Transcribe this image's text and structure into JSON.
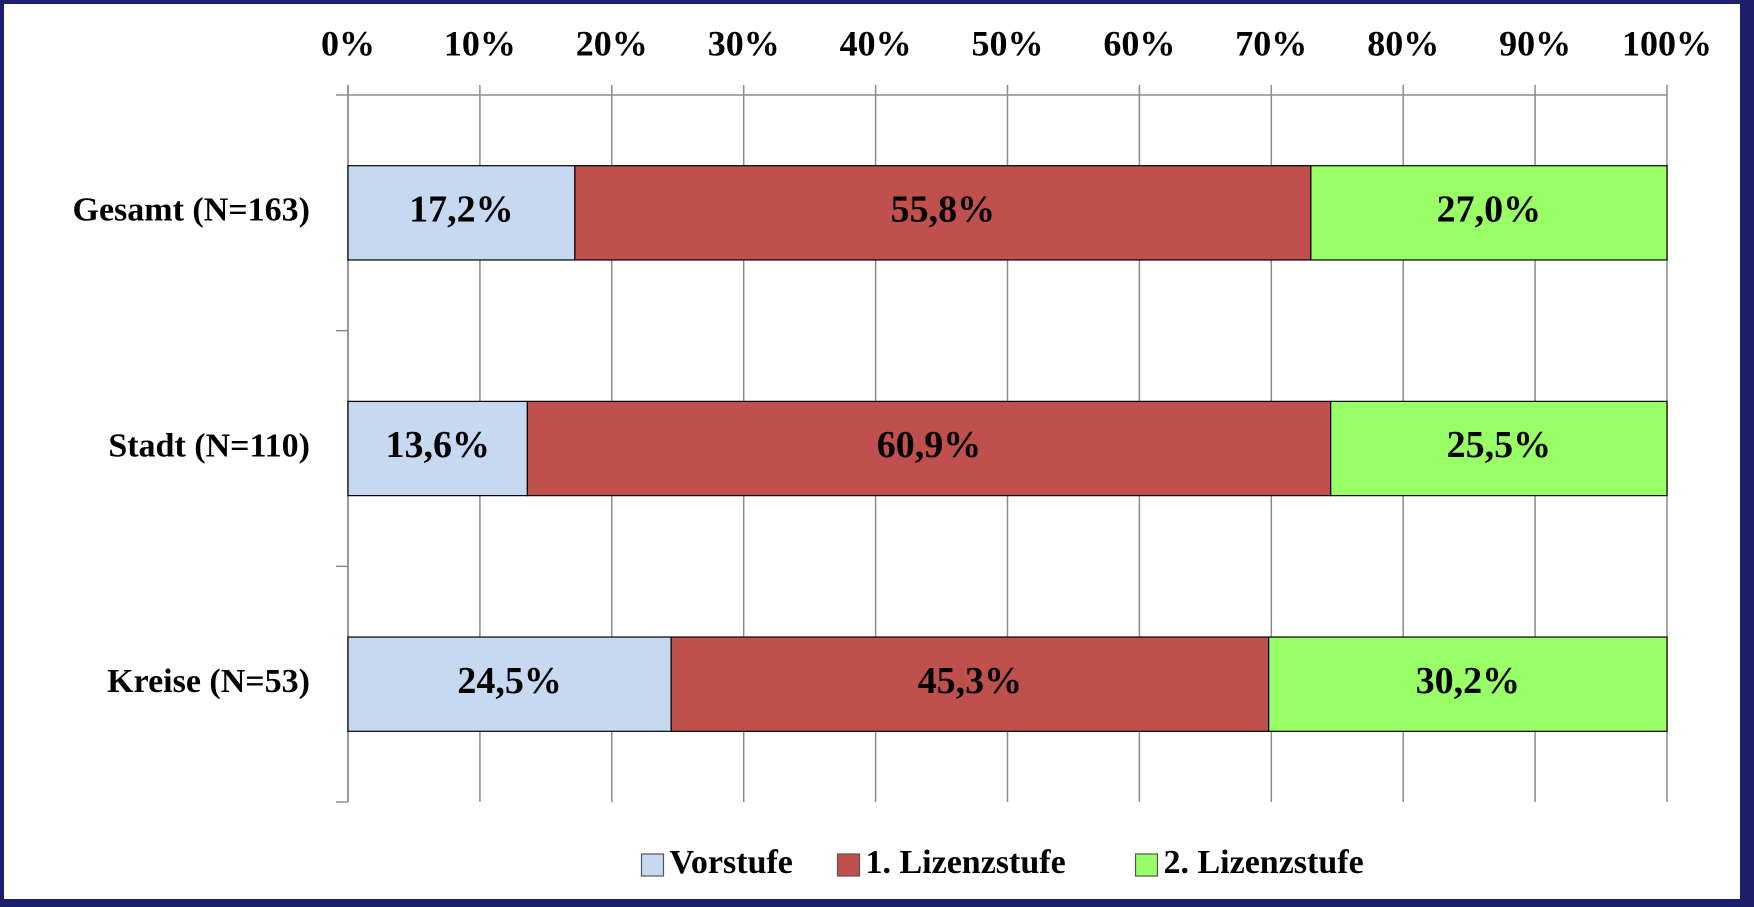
{
  "chart_data": {
    "type": "stacked_barh",
    "categories": [
      "Gesamt (N=163)",
      "Stadt (N=110)",
      "Kreise (N=53)"
    ],
    "series": [
      {
        "name": "Vorstufe",
        "color": "#c6d9f1",
        "label_color": "#000000",
        "values": [
          17.2,
          13.6,
          24.5
        ],
        "value_labels": [
          "17,2%",
          "13,6%",
          "24,5%"
        ]
      },
      {
        "name": "1. Lizenzstufe",
        "color": "#c0504d",
        "label_color": "#ffffff",
        "values": [
          55.8,
          60.9,
          45.3
        ],
        "value_labels": [
          "55,8%",
          "60,9%",
          "45,3%"
        ]
      },
      {
        "name": "2. Lizenzstufe",
        "color": "#99ff66",
        "label_color": "#000000",
        "values": [
          27.0,
          25.5,
          30.2
        ],
        "value_labels": [
          "27,0%",
          "25,5%",
          "30,2%"
        ]
      }
    ],
    "xlim": [
      0,
      100
    ],
    "xticks": [
      {
        "value": 0,
        "label": "0%"
      },
      {
        "value": 10,
        "label": "10%"
      },
      {
        "value": 20,
        "label": "20%"
      },
      {
        "value": 30,
        "label": "30%"
      },
      {
        "value": 40,
        "label": "40%"
      },
      {
        "value": 50,
        "label": "50%"
      },
      {
        "value": 60,
        "label": "60%"
      },
      {
        "value": 70,
        "label": "70%"
      },
      {
        "value": 80,
        "label": "80%"
      },
      {
        "value": 90,
        "label": "90%"
      },
      {
        "value": 100,
        "label": "100%"
      }
    ],
    "grid": true,
    "legend": "bottom"
  }
}
